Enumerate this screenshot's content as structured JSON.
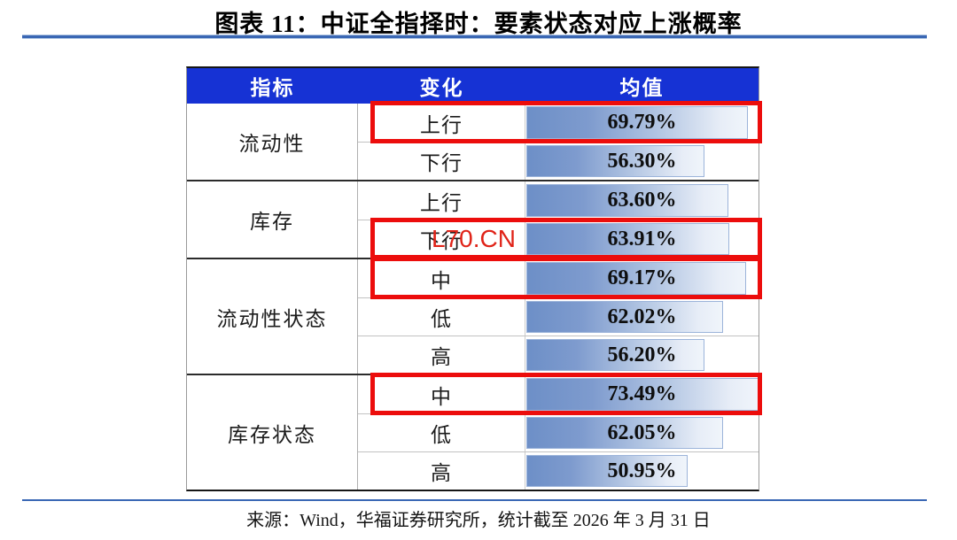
{
  "title": "图表 11：中证全指择时：要素状态对应上涨概率",
  "watermark": "L70.CN",
  "footer": {
    "source": "来源：Wind，华福证券研究所，统计截至 2026 年 3 月 31 日"
  },
  "colors": {
    "header_bg": "#1632d4",
    "header_text": "#ffffff",
    "bar_gradient_start": "#6d8fc7",
    "bar_gradient_end": "#f0f5fb",
    "bar_border": "#9cb4da",
    "highlight_box": "#ec0d0c",
    "watermark_red": "#e02318",
    "rule_blue": "#3a67b4"
  },
  "chart_data": {
    "type": "table",
    "title": "中证全指择时：要素状态对应上涨概率",
    "columns": [
      "指标",
      "变化",
      "均值"
    ],
    "bar_scale_max": 73.49,
    "groups": [
      {
        "indicator": "流动性",
        "rows": [
          {
            "change": "上行",
            "value": 69.79,
            "label": "69.79%",
            "highlighted": true
          },
          {
            "change": "下行",
            "value": 56.3,
            "label": "56.30%",
            "highlighted": false
          }
        ]
      },
      {
        "indicator": "库存",
        "rows": [
          {
            "change": "上行",
            "value": 63.6,
            "label": "63.60%",
            "highlighted": false
          },
          {
            "change": "下行",
            "value": 63.91,
            "label": "63.91%",
            "highlighted": true
          }
        ]
      },
      {
        "indicator": "流动性状态",
        "rows": [
          {
            "change": "中",
            "value": 69.17,
            "label": "69.17%",
            "highlighted": true
          },
          {
            "change": "低",
            "value": 62.02,
            "label": "62.02%",
            "highlighted": false
          },
          {
            "change": "高",
            "value": 56.2,
            "label": "56.20%",
            "highlighted": false
          }
        ]
      },
      {
        "indicator": "库存状态",
        "rows": [
          {
            "change": "中",
            "value": 73.49,
            "label": "73.49%",
            "highlighted": true
          },
          {
            "change": "低",
            "value": 62.05,
            "label": "62.05%",
            "highlighted": false
          },
          {
            "change": "高",
            "value": 50.95,
            "label": "50.95%",
            "highlighted": false
          }
        ]
      }
    ]
  }
}
